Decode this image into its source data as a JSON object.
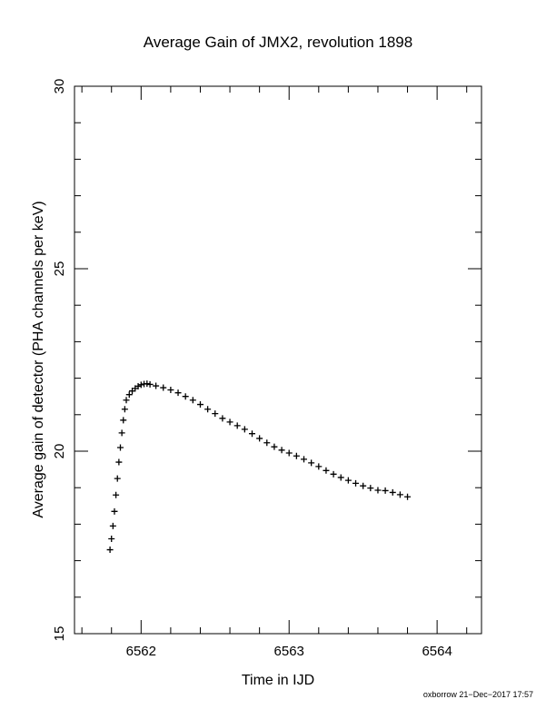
{
  "chart_data": {
    "type": "scatter",
    "title": "Average Gain of JMX2, revolution 1898",
    "xlabel": "Time in IJD",
    "ylabel": "Average gain of detector (PHA channels per keV)",
    "xlim": [
      6561.55,
      6564.3
    ],
    "ylim": [
      15,
      30
    ],
    "x_ticks": [
      6562,
      6563,
      6564
    ],
    "y_ticks": [
      15,
      20,
      25,
      30
    ],
    "x_minor_step": 0.2,
    "y_minor_step": 1,
    "marker": "plus",
    "grid": false,
    "series": [
      {
        "color": "#000000",
        "x": [
          6561.79,
          6561.8,
          6561.81,
          6561.82,
          6561.83,
          6561.84,
          6561.85,
          6561.86,
          6561.87,
          6561.88,
          6561.89,
          6561.9,
          6561.92,
          6561.94,
          6561.96,
          6561.98,
          6562.0,
          6562.02,
          6562.04,
          6562.06,
          6562.1,
          6562.15,
          6562.2,
          6562.25,
          6562.3,
          6562.35,
          6562.4,
          6562.45,
          6562.5,
          6562.55,
          6562.6,
          6562.65,
          6562.7,
          6562.75,
          6562.8,
          6562.85,
          6562.9,
          6562.95,
          6563.0,
          6563.05,
          6563.1,
          6563.15,
          6563.2,
          6563.25,
          6563.3,
          6563.35,
          6563.4,
          6563.45,
          6563.5,
          6563.55,
          6563.6,
          6563.65,
          6563.7,
          6563.75,
          6563.8
        ],
        "y": [
          17.3,
          17.6,
          17.95,
          18.35,
          18.8,
          19.25,
          19.7,
          20.1,
          20.5,
          20.85,
          21.15,
          21.4,
          21.55,
          21.65,
          21.72,
          21.78,
          21.82,
          21.84,
          21.85,
          21.83,
          21.79,
          21.74,
          21.68,
          21.6,
          21.5,
          21.4,
          21.28,
          21.15,
          21.03,
          20.9,
          20.8,
          20.7,
          20.6,
          20.48,
          20.35,
          20.23,
          20.12,
          20.03,
          19.95,
          19.87,
          19.78,
          19.68,
          19.58,
          19.47,
          19.37,
          19.28,
          19.2,
          19.12,
          19.05,
          18.99,
          18.93,
          18.92,
          18.87,
          18.81,
          18.75
        ]
      }
    ]
  },
  "footer": {
    "text": "oxborrow 21−Dec−2017 17:57"
  }
}
